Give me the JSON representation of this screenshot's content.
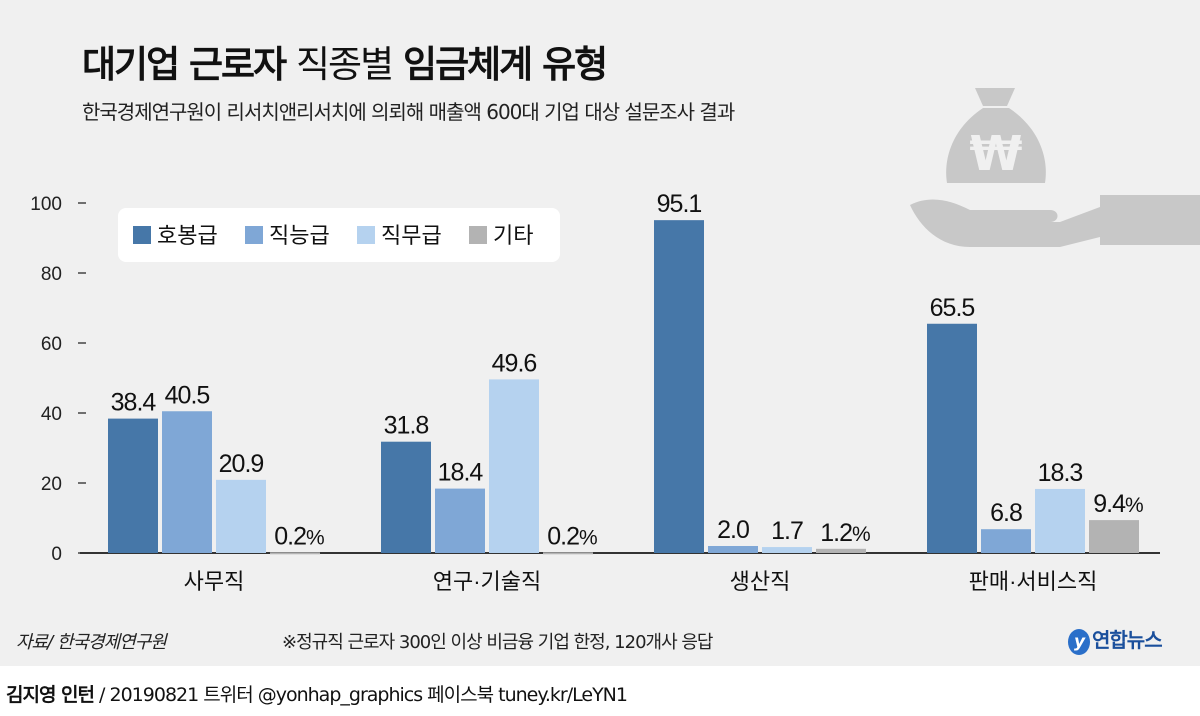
{
  "title": {
    "part1": "대기업 근로자",
    "part2": "직종별",
    "part3": "임금체계 유형"
  },
  "subtitle": "한국경제연구원이 리서치앤리서치에 의뢰해 매출액 600대 기업 대상 설문조사 결과",
  "chart_data": {
    "type": "bar",
    "categories": [
      "사무직",
      "연구·기술직",
      "생산직",
      "판매·서비스직"
    ],
    "series": [
      {
        "name": "호봉급",
        "values": [
          38.4,
          31.8,
          95.1,
          65.5
        ],
        "color": "#4677a8"
      },
      {
        "name": "직능급",
        "values": [
          40.5,
          18.4,
          2.0,
          6.8
        ],
        "color": "#7fa7d6"
      },
      {
        "name": "직무급",
        "values": [
          20.9,
          49.6,
          1.7,
          18.3
        ],
        "color": "#b5d2ef"
      },
      {
        "name": "기타",
        "values": [
          0.2,
          0.2,
          1.2,
          9.4
        ],
        "color": "#b3b3b3"
      }
    ],
    "unit": "%",
    "yticks": [
      0,
      20,
      40,
      60,
      80,
      100
    ],
    "ylim": [
      0,
      100
    ],
    "grid": false,
    "legend": "top-left"
  },
  "footer": {
    "source": "자료/ 한국경제연구원",
    "note": "※정규직 근로자 300인 이상 비금융 기업 한정, 120개사 응답",
    "logo": "연합뉴스"
  },
  "credit": {
    "author": "김지영 인턴",
    "rest": " / 20190821 트위터 @yonhap_graphics  페이스북 tuney.kr/LeYN1"
  }
}
